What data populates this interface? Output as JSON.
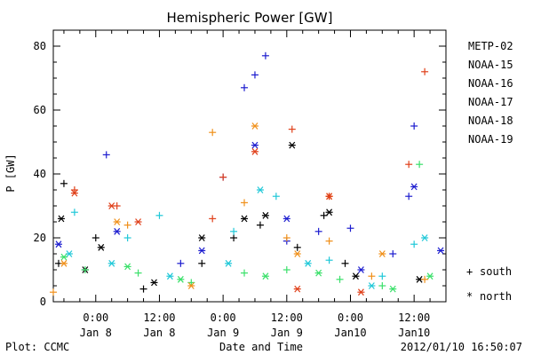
{
  "chart_data": {
    "type": "scatter",
    "title": "Hemispheric Power [GW]",
    "xlabel": "Date and Time",
    "ylabel": "P [GW]",
    "ylim": [
      0,
      85
    ],
    "xlim": [
      "2012-01-07 16:00",
      "2012-01-10 18:00"
    ],
    "y_ticks": [
      "0",
      "20",
      "40",
      "60",
      "80"
    ],
    "x_ticks": [
      {
        "time": "2012-01-08 00:00",
        "line1": "0:00",
        "line2": "Jan 8"
      },
      {
        "time": "2012-01-08 12:00",
        "line1": "12:00",
        "line2": "Jan 8"
      },
      {
        "time": "2012-01-09 00:00",
        "line1": "0:00",
        "line2": "Jan 9"
      },
      {
        "time": "2012-01-09 12:00",
        "line1": "12:00",
        "line2": "Jan 9"
      },
      {
        "time": "2012-01-10 00:00",
        "line1": "0:00",
        "line2": "Jan10"
      },
      {
        "time": "2012-01-10 12:00",
        "line1": "12:00",
        "line2": "Jan10"
      }
    ],
    "marker_legend": [
      {
        "symbol": "+",
        "label": "south"
      },
      {
        "symbol": "*",
        "label": "north"
      }
    ],
    "series": [
      {
        "name": "METP-02",
        "color": "#000000",
        "south": [
          [
            "2012-01-07 17:00",
            12
          ],
          [
            "2012-01-07 18:00",
            37
          ],
          [
            "2012-01-08 00:00",
            20
          ],
          [
            "2012-01-08 09:00",
            4
          ],
          [
            "2012-01-08 20:00",
            12
          ],
          [
            "2012-01-09 02:00",
            20
          ],
          [
            "2012-01-09 07:00",
            24
          ],
          [
            "2012-01-09 14:00",
            17
          ],
          [
            "2012-01-09 19:00",
            27
          ],
          [
            "2012-01-09 23:00",
            12
          ]
        ],
        "north": [
          [
            "2012-01-07 17:30",
            26
          ],
          [
            "2012-01-07 22:00",
            10
          ],
          [
            "2012-01-08 01:00",
            17
          ],
          [
            "2012-01-08 11:00",
            6
          ],
          [
            "2012-01-08 20:00",
            20
          ],
          [
            "2012-01-09 04:00",
            26
          ],
          [
            "2012-01-09 08:00",
            27
          ],
          [
            "2012-01-09 13:00",
            49
          ],
          [
            "2012-01-09 20:00",
            28
          ],
          [
            "2012-01-10 01:00",
            8
          ],
          [
            "2012-01-10 13:00",
            7
          ]
        ]
      },
      {
        "name": "NOAA-15",
        "color": "#1c1ccf",
        "south": [
          [
            "2012-01-08 02:00",
            46
          ],
          [
            "2012-01-08 16:00",
            12
          ],
          [
            "2012-01-09 00:00",
            39
          ],
          [
            "2012-01-09 04:00",
            67
          ],
          [
            "2012-01-09 06:00",
            71
          ],
          [
            "2012-01-09 08:00",
            77
          ],
          [
            "2012-01-09 12:00",
            19
          ],
          [
            "2012-01-09 18:00",
            22
          ],
          [
            "2012-01-10 00:00",
            23
          ],
          [
            "2012-01-10 08:00",
            15
          ],
          [
            "2012-01-10 11:00",
            33
          ],
          [
            "2012-01-10 12:00",
            55
          ]
        ],
        "north": [
          [
            "2012-01-07 17:00",
            18
          ],
          [
            "2012-01-08 04:00",
            22
          ],
          [
            "2012-01-08 20:00",
            16
          ],
          [
            "2012-01-09 06:00",
            49
          ],
          [
            "2012-01-09 12:00",
            26
          ],
          [
            "2012-01-10 02:00",
            10
          ],
          [
            "2012-01-10 12:00",
            36
          ],
          [
            "2012-01-10 17:00",
            16
          ]
        ]
      },
      {
        "name": "NOAA-16",
        "color": "#20c8d8",
        "south": [
          [
            "2012-01-07 20:00",
            28
          ],
          [
            "2012-01-08 06:00",
            20
          ],
          [
            "2012-01-08 12:00",
            27
          ],
          [
            "2012-01-09 02:00",
            22
          ],
          [
            "2012-01-09 10:00",
            33
          ],
          [
            "2012-01-09 20:00",
            13
          ],
          [
            "2012-01-10 06:00",
            8
          ],
          [
            "2012-01-10 12:00",
            18
          ]
        ],
        "north": [
          [
            "2012-01-07 19:00",
            15
          ],
          [
            "2012-01-08 03:00",
            12
          ],
          [
            "2012-01-08 14:00",
            8
          ],
          [
            "2012-01-09 01:00",
            12
          ],
          [
            "2012-01-09 07:00",
            35
          ],
          [
            "2012-01-09 16:00",
            12
          ],
          [
            "2012-01-10 04:00",
            5
          ],
          [
            "2012-01-10 14:00",
            20
          ]
        ]
      },
      {
        "name": "NOAA-17",
        "color": "#3ae06a",
        "south": [
          [
            "2012-01-07 22:00",
            10
          ],
          [
            "2012-01-08 08:00",
            9
          ],
          [
            "2012-01-08 18:00",
            6
          ],
          [
            "2012-01-09 04:00",
            9
          ],
          [
            "2012-01-09 12:00",
            10
          ],
          [
            "2012-01-09 22:00",
            7
          ],
          [
            "2012-01-10 06:00",
            5
          ],
          [
            "2012-01-10 13:00",
            43
          ]
        ],
        "north": [
          [
            "2012-01-07 18:00",
            14
          ],
          [
            "2012-01-08 06:00",
            11
          ],
          [
            "2012-01-08 16:00",
            7
          ],
          [
            "2012-01-09 08:00",
            8
          ],
          [
            "2012-01-09 18:00",
            9
          ],
          [
            "2012-01-10 08:00",
            4
          ],
          [
            "2012-01-10 15:00",
            8
          ]
        ]
      },
      {
        "name": "NOAA-18",
        "color": "#f0901a",
        "south": [
          [
            "2012-01-07 16:00",
            3
          ],
          [
            "2012-01-08 06:00",
            24
          ],
          [
            "2012-01-08 22:00",
            53
          ],
          [
            "2012-01-09 04:00",
            31
          ],
          [
            "2012-01-09 12:00",
            20
          ],
          [
            "2012-01-09 20:00",
            19
          ],
          [
            "2012-01-10 04:00",
            8
          ],
          [
            "2012-01-10 14:00",
            7
          ]
        ],
        "north": [
          [
            "2012-01-07 18:00",
            12
          ],
          [
            "2012-01-08 04:00",
            25
          ],
          [
            "2012-01-08 18:00",
            5
          ],
          [
            "2012-01-09 06:00",
            55
          ],
          [
            "2012-01-09 14:00",
            15
          ],
          [
            "2012-01-09 20:00",
            33
          ],
          [
            "2012-01-10 06:00",
            15
          ]
        ]
      },
      {
        "name": "NOAA-19",
        "color": "#e0401a",
        "south": [
          [
            "2012-01-07 20:00",
            35
          ],
          [
            "2012-01-08 04:00",
            30
          ],
          [
            "2012-01-08 22:00",
            26
          ],
          [
            "2012-01-09 00:00",
            39
          ],
          [
            "2012-01-09 13:00",
            54
          ],
          [
            "2012-01-09 20:00",
            33
          ],
          [
            "2012-01-10 11:00",
            43
          ],
          [
            "2012-01-10 14:00",
            72
          ]
        ],
        "north": [
          [
            "2012-01-07 20:00",
            34
          ],
          [
            "2012-01-08 03:00",
            30
          ],
          [
            "2012-01-08 08:00",
            25
          ],
          [
            "2012-01-09 06:00",
            47
          ],
          [
            "2012-01-09 14:00",
            4
          ],
          [
            "2012-01-09 20:00",
            33
          ],
          [
            "2012-01-10 02:00",
            3
          ]
        ]
      }
    ]
  },
  "footer": {
    "plot_credit": "Plot: CCMC",
    "timestamp": "2012/01/10 16:50:07"
  }
}
